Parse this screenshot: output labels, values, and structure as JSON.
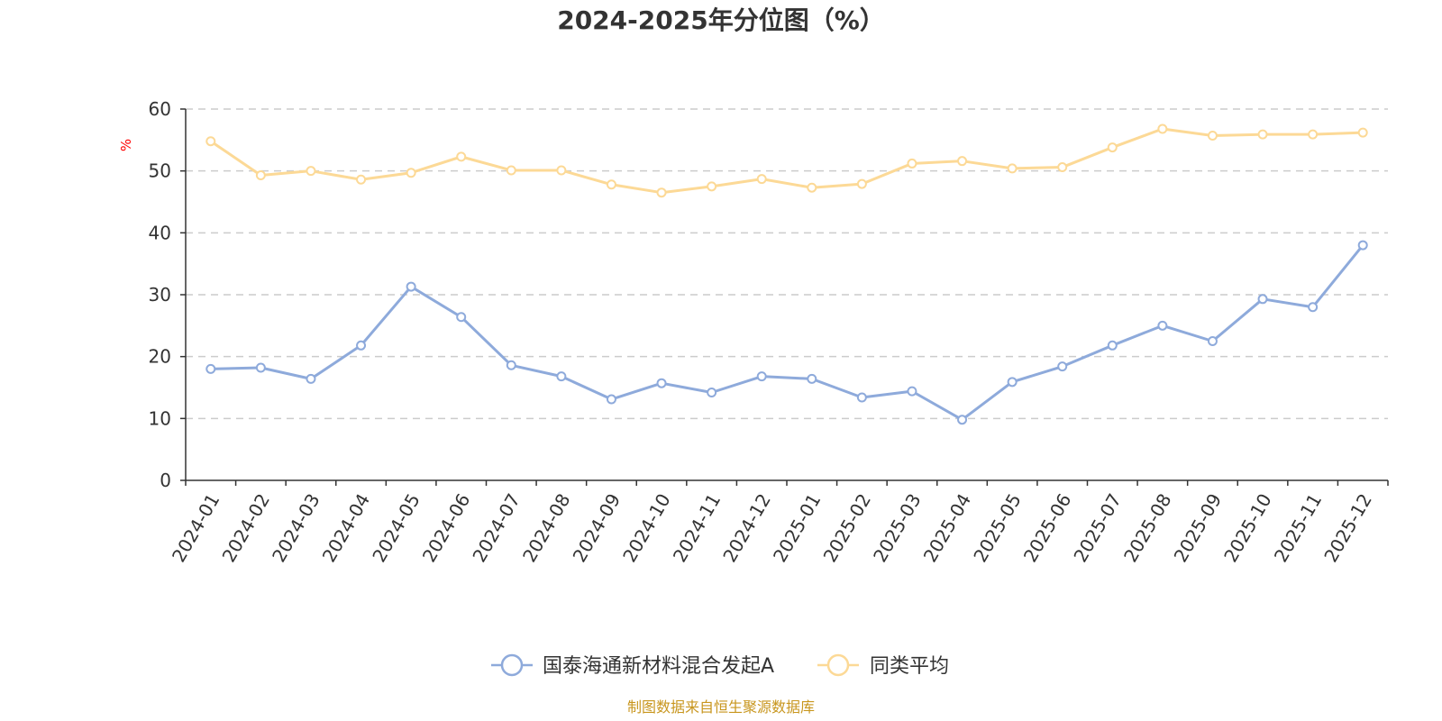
{
  "chart_data": {
    "type": "line",
    "title": "2024-2025年分位图（%）",
    "ylabel": "%",
    "xlabel": "",
    "ylim": [
      0,
      60
    ],
    "yticks": [
      0,
      10,
      20,
      30,
      40,
      50,
      60
    ],
    "grid": true,
    "legend_position": "bottom-center",
    "categories": [
      "2024-01",
      "2024-02",
      "2024-03",
      "2024-04",
      "2024-05",
      "2024-06",
      "2024-07",
      "2024-08",
      "2024-09",
      "2024-10",
      "2024-11",
      "2024-12",
      "2025-01",
      "2025-02",
      "2025-03",
      "2025-04",
      "2025-05",
      "2025-06",
      "2025-07",
      "2025-08",
      "2025-09",
      "2025-10",
      "2025-11",
      "2025-12"
    ],
    "series": [
      {
        "name": "国泰海通新材料混合发起A",
        "color": "#8eaadb",
        "values": [
          18.0,
          18.2,
          16.4,
          21.8,
          31.3,
          26.4,
          18.6,
          16.8,
          13.1,
          15.7,
          14.2,
          16.8,
          16.4,
          13.4,
          14.4,
          9.8,
          15.9,
          18.4,
          21.8,
          25.0,
          22.5,
          29.3,
          28.0,
          38.0
        ]
      },
      {
        "name": "同类平均",
        "color": "#fcd996",
        "values": [
          54.8,
          49.3,
          50.0,
          48.6,
          49.7,
          52.3,
          50.1,
          50.1,
          47.8,
          46.5,
          47.5,
          48.7,
          47.3,
          47.9,
          51.2,
          51.6,
          50.4,
          50.6,
          53.8,
          56.8,
          55.7,
          55.9,
          55.9,
          56.2
        ]
      }
    ],
    "source": "制图数据来自恒生聚源数据库",
    "source_color": "#c8961e",
    "ylabel_color": "#ff0000"
  }
}
